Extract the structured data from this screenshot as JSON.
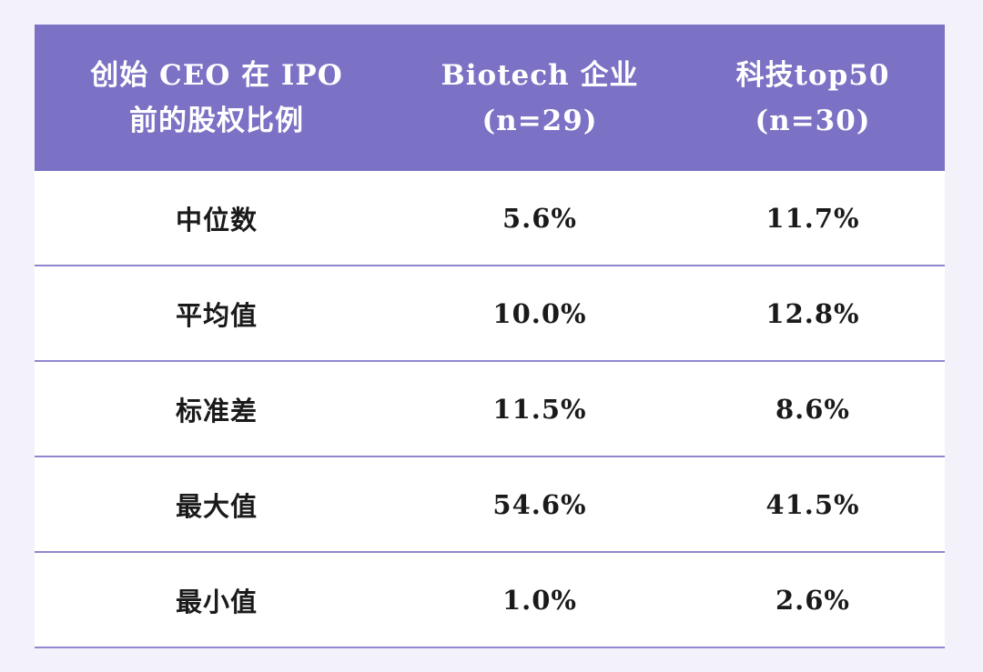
{
  "table": {
    "headers": [
      {
        "line1": "创始 CEO 在 IPO",
        "line2": "前的股权比例"
      },
      {
        "line1": "Biotech 企业",
        "line2": "(n=29)"
      },
      {
        "line1": "科技top50",
        "line2": "(n=30)"
      }
    ],
    "rows": [
      {
        "label": "中位数",
        "biotech": "5.6%",
        "tech": "11.7%"
      },
      {
        "label": "平均值",
        "biotech": "10.0%",
        "tech": "12.8%"
      },
      {
        "label": "标准差",
        "biotech": "11.5%",
        "tech": "8.6%"
      },
      {
        "label": "最大值",
        "biotech": "54.6%",
        "tech": "41.5%"
      },
      {
        "label": "最小值",
        "biotech": "1.0%",
        "tech": "2.6%"
      }
    ]
  },
  "colors": {
    "header_bg": "#7b71c5",
    "row_divider": "#8f87cf",
    "page_bg": "#f3f1f9"
  }
}
